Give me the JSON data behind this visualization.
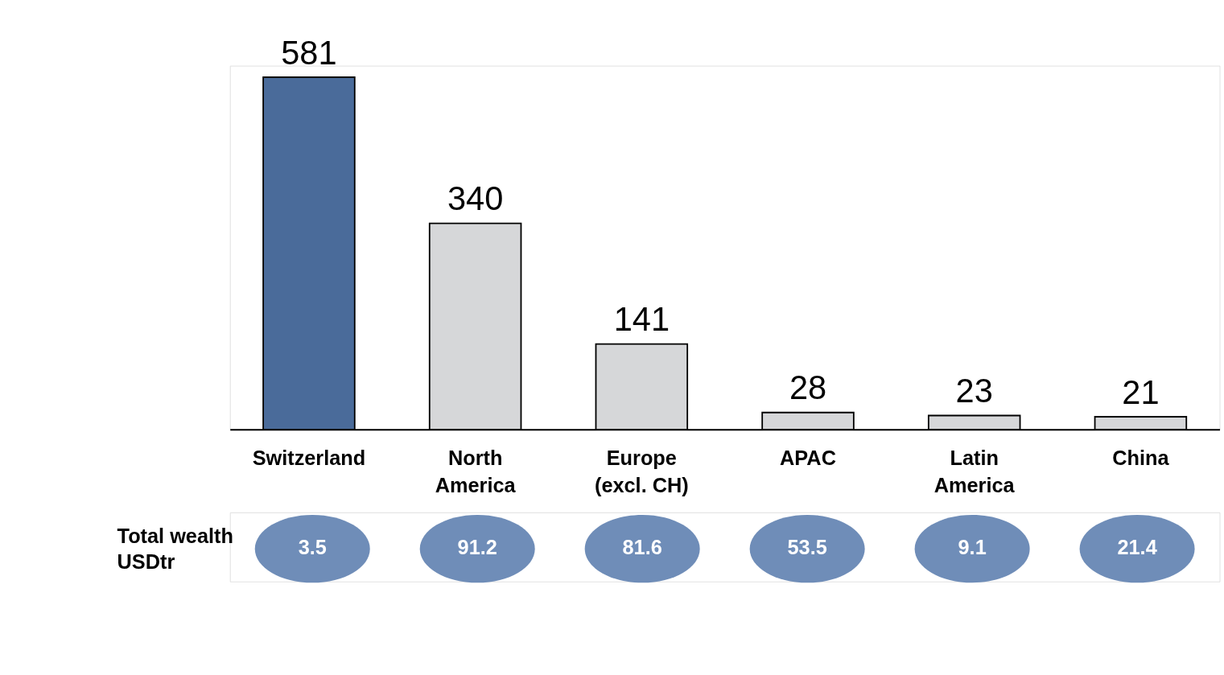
{
  "chart_data": [
    {
      "type": "bar",
      "categories": [
        "Switzerland",
        "North America",
        "Europe (excl. CH)",
        "APAC",
        "Latin America",
        "China"
      ],
      "values": [
        581,
        340,
        141,
        28,
        23,
        21
      ],
      "colors": [
        "#4a6b9a",
        "#d6d7d9",
        "#d6d7d9",
        "#d6d7d9",
        "#d6d7d9",
        "#d6d7d9"
      ],
      "data_labels": true
    },
    {
      "type": "other",
      "title": "Total wealth USDtr",
      "categories": [
        null,
        null,
        null,
        null,
        null,
        null
      ],
      "values": [
        3.5,
        91.2,
        81.6,
        53.5,
        9.1,
        21.4
      ],
      "color": "#6f8db8",
      "data_labels": true
    }
  ]
}
